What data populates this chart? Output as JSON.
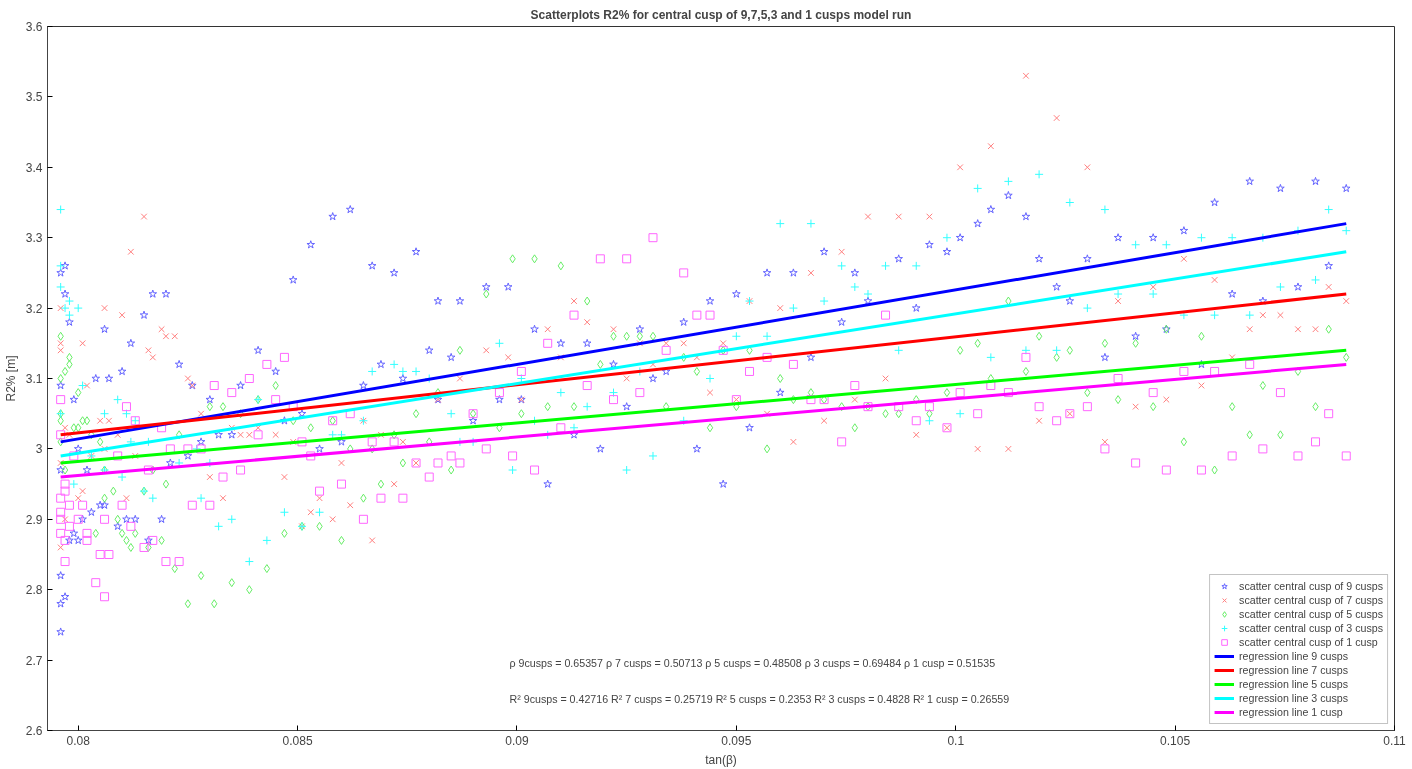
{
  "chart_data": {
    "type": "scatter",
    "title": "Scatterplots R2% for central cusp of 9,7,5,3 and 1 cusps model run",
    "xlabel": "tan(β)",
    "ylabel": "R2% [m]",
    "xlim": [
      0.0793,
      0.11
    ],
    "ylim": [
      2.6,
      3.6
    ],
    "xticks": [
      0.08,
      0.085,
      0.09,
      0.095,
      {
        "value": 0.1,
        "label": "0.1"
      },
      0.105,
      0.11
    ],
    "yticks": [
      2.6,
      2.7,
      2.8,
      2.9,
      {
        "value": 3.0,
        "label": "3"
      },
      3.1,
      3.2,
      3.3,
      3.4,
      3.5,
      3.6
    ],
    "legend": "bottom right",
    "annotations": [
      "ρ 9cusps = 0.65357   ρ 7 cusps = 0.50713   ρ 5 cusps = 0.48508   ρ 3 cusps = 0.69484   ρ 1 cusp = 0.51535",
      "R² 9cusps = 0.42716   R² 7 cusps = 0.25719   R² 5 cusps = 0.2353   R² 3 cusps = 0.4828   R² 1 cusp = 0.26559"
    ],
    "series": [
      {
        "name": "scatter central cusp of 9 cusps",
        "type": "scatter",
        "marker": "star",
        "color": "#6666ff",
        "x": [
          0.0796,
          0.0797,
          0.0797,
          0.0798,
          0.0796,
          0.0799,
          0.0806,
          0.0804,
          0.0807,
          0.081,
          0.0812,
          0.0815,
          0.0817,
          0.082,
          0.0823,
          0.0826,
          0.083,
          0.0837,
          0.0841,
          0.0845,
          0.0849,
          0.0853,
          0.0858,
          0.0862,
          0.0867,
          0.0872,
          0.0869,
          0.0865,
          0.0802,
          0.08,
          0.0796,
          0.0803,
          0.0805,
          0.0806,
          0.0801,
          0.0799,
          0.0798,
          0.08,
          0.0809,
          0.0811,
          0.0813,
          0.0816,
          0.0819,
          0.0828,
          0.0825,
          0.0821,
          0.0832,
          0.0835,
          0.0847,
          0.0851,
          0.0855,
          0.086,
          0.0796,
          0.0797,
          0.0796,
          0.0796,
          0.0877,
          0.0882,
          0.0887,
          0.0893,
          0.0898,
          0.088,
          0.0885,
          0.0874,
          0.0904,
          0.091,
          0.0916,
          0.0928,
          0.0938,
          0.0944,
          0.095,
          0.0922,
          0.0931,
          0.0934,
          0.0882,
          0.0896,
          0.0901,
          0.089,
          0.0925,
          0.0913,
          0.0919,
          0.0941,
          0.0907,
          0.0947,
          0.0953,
          0.0957,
          0.0963,
          0.097,
          0.0977,
          0.098,
          0.0987,
          0.0994,
          0.0998,
          0.1001,
          0.1005,
          0.1008,
          0.1012,
          0.1016,
          0.1019,
          0.1023,
          0.1026,
          0.103,
          0.1037,
          0.1034,
          0.0991,
          0.0974,
          0.0967,
          0.096,
          0.1045,
          0.1052,
          0.1059,
          0.1067,
          0.1074,
          0.1082,
          0.1089,
          0.1085,
          0.1078,
          0.107,
          0.1063,
          0.1048,
          0.1041,
          0.1056
        ],
        "values": [
          3.25,
          3.26,
          3.22,
          3.18,
          3.09,
          3.07,
          3.17,
          3.1,
          3.1,
          3.11,
          3.15,
          3.19,
          3.22,
          3.22,
          3.12,
          3.09,
          3.07,
          3.09,
          3.14,
          3.11,
          3.24,
          3.29,
          3.33,
          3.34,
          3.26,
          3.25,
          3.12,
          3.09,
          2.97,
          3.0,
          2.97,
          2.91,
          2.92,
          2.92,
          2.9,
          2.88,
          2.87,
          2.87,
          2.89,
          2.9,
          2.9,
          2.87,
          2.9,
          3.01,
          2.99,
          2.98,
          3.02,
          3.02,
          3.04,
          3.05,
          3.0,
          3.01,
          2.82,
          2.79,
          2.78,
          2.74,
          3.28,
          3.21,
          3.21,
          3.23,
          3.23,
          3.14,
          3.13,
          3.1,
          3.17,
          3.15,
          3.15,
          3.17,
          3.18,
          3.21,
          3.22,
          3.12,
          3.1,
          3.11,
          3.07,
          3.07,
          3.07,
          3.04,
          3.06,
          3.02,
          3.0,
          3.0,
          2.95,
          2.95,
          3.03,
          3.25,
          3.25,
          3.28,
          3.25,
          3.21,
          3.27,
          3.29,
          3.28,
          3.3,
          3.32,
          3.34,
          3.36,
          3.33,
          3.27,
          3.23,
          3.21,
          3.27,
          3.3,
          3.13,
          3.2,
          3.18,
          3.13,
          3.08,
          3.3,
          3.31,
          3.35,
          3.38,
          3.37,
          3.38,
          3.37,
          3.26,
          3.23,
          3.21,
          3.22,
          3.17,
          3.16,
          3.12
        ]
      },
      {
        "name": "scatter central cusp of 7 cusps",
        "type": "scatter",
        "marker": "x",
        "color": "#ff7f7f",
        "x": [
          0.0796,
          0.0796,
          0.0796,
          0.0801,
          0.0806,
          0.081,
          0.0812,
          0.0815,
          0.0816,
          0.0817,
          0.0819,
          0.082,
          0.0822,
          0.0802,
          0.0825,
          0.0826,
          0.0828,
          0.0805,
          0.0807,
          0.0809,
          0.0797,
          0.0798,
          0.0806,
          0.0813,
          0.0803,
          0.0796,
          0.083,
          0.0833,
          0.08,
          0.0801,
          0.0811,
          0.0797,
          0.0796,
          0.0835,
          0.0837,
          0.0839,
          0.0841,
          0.0845,
          0.0849,
          0.086,
          0.0847,
          0.0853,
          0.0855,
          0.0858,
          0.0862,
          0.0867,
          0.0851,
          0.0872,
          0.0865,
          0.0869,
          0.0913,
          0.0916,
          0.0907,
          0.0893,
          0.0898,
          0.0887,
          0.091,
          0.0922,
          0.0928,
          0.0934,
          0.0938,
          0.0953,
          0.0947,
          0.0941,
          0.0931,
          0.0925,
          0.0944,
          0.095,
          0.0901,
          0.0882,
          0.0874,
          0.0877,
          0.096,
          0.0967,
          0.0974,
          0.098,
          0.0987,
          0.0994,
          0.1001,
          0.1008,
          0.1016,
          0.1023,
          0.103,
          0.1037,
          0.0984,
          0.0957,
          0.097,
          0.0977,
          0.0963,
          0.0991,
          0.0998,
          0.1005,
          0.1012,
          0.1019,
          0.1026,
          0.1034,
          0.1045,
          0.1052,
          0.1059,
          0.1067,
          0.107,
          0.1074,
          0.1078,
          0.1082,
          0.1085,
          0.1089,
          0.1063,
          0.1056,
          0.1048,
          0.1041
        ],
        "values": [
          3.2,
          3.14,
          3.15,
          3.15,
          3.2,
          3.19,
          3.28,
          3.33,
          3.14,
          3.13,
          3.17,
          3.16,
          3.16,
          3.09,
          3.1,
          3.09,
          3.05,
          3.04,
          3.04,
          3.02,
          3.03,
          3.02,
          3.0,
          2.99,
          2.99,
          2.98,
          2.96,
          2.93,
          2.93,
          2.94,
          2.93,
          2.9,
          2.86,
          3.03,
          3.02,
          3.02,
          3.03,
          3.02,
          3.01,
          2.98,
          2.96,
          2.91,
          2.93,
          2.9,
          2.92,
          2.87,
          2.89,
          2.95,
          3.04,
          3.02,
          3.21,
          3.18,
          3.17,
          3.14,
          3.13,
          3.1,
          3.13,
          3.17,
          3.15,
          3.15,
          3.15,
          3.21,
          3.15,
          3.13,
          3.12,
          3.1,
          3.08,
          3.07,
          3.07,
          3.07,
          3.01,
          2.98,
          3.2,
          3.25,
          3.28,
          3.33,
          3.33,
          3.33,
          3.4,
          3.43,
          3.53,
          3.47,
          3.4,
          3.21,
          3.1,
          3.05,
          3.04,
          3.07,
          3.01,
          3.02,
          3.03,
          3.0,
          3.0,
          3.04,
          3.05,
          3.01,
          3.23,
          3.27,
          3.24,
          3.17,
          3.19,
          3.19,
          3.17,
          3.17,
          3.23,
          3.21,
          3.13,
          3.09,
          3.07,
          3.06
        ]
      },
      {
        "name": "scatter central cusp of 5 cusps",
        "type": "scatter",
        "marker": "diamond",
        "color": "#66ee66",
        "x": [
          0.0796,
          0.0798,
          0.0798,
          0.0797,
          0.0796,
          0.08,
          0.0796,
          0.0796,
          0.0796,
          0.0799,
          0.08,
          0.0801,
          0.0802,
          0.0803,
          0.0805,
          0.0806,
          0.0797,
          0.0808,
          0.0806,
          0.0804,
          0.0809,
          0.081,
          0.0811,
          0.0812,
          0.0813,
          0.0815,
          0.0816,
          0.0817,
          0.0819,
          0.082,
          0.0822,
          0.0823,
          0.0825,
          0.0828,
          0.083,
          0.0831,
          0.0833,
          0.0835,
          0.0837,
          0.0839,
          0.0841,
          0.0843,
          0.0845,
          0.0847,
          0.0849,
          0.0851,
          0.0853,
          0.0855,
          0.0858,
          0.086,
          0.0862,
          0.0865,
          0.0867,
          0.0869,
          0.0872,
          0.0899,
          0.0904,
          0.091,
          0.0893,
          0.0916,
          0.0887,
          0.0922,
          0.0925,
          0.0928,
          0.0931,
          0.0938,
          0.0941,
          0.0947,
          0.0953,
          0.0919,
          0.0882,
          0.0877,
          0.089,
          0.0901,
          0.0907,
          0.0913,
          0.0934,
          0.095,
          0.088,
          0.0896,
          0.0944,
          0.0874,
          0.0885,
          0.096,
          0.0957,
          0.0967,
          0.097,
          0.0963,
          0.0974,
          0.0977,
          0.098,
          0.0984,
          0.0987,
          0.0991,
          0.0994,
          0.0998,
          0.1001,
          0.1005,
          0.1008,
          0.1012,
          0.1016,
          0.1019,
          0.1023,
          0.1026,
          0.103,
          0.1034,
          0.1037,
          0.1041,
          0.1048,
          0.1056,
          0.1045,
          0.1052,
          0.1059,
          0.1063,
          0.1067,
          0.107,
          0.1074,
          0.1078,
          0.1082,
          0.1085,
          0.1089
        ],
        "values": [
          3.16,
          3.13,
          3.12,
          3.11,
          3.1,
          3.08,
          3.05,
          3.04,
          3.01,
          3.03,
          3.03,
          3.04,
          3.04,
          3.02,
          3.01,
          2.97,
          2.97,
          2.94,
          2.93,
          2.88,
          2.9,
          2.88,
          2.87,
          2.86,
          2.88,
          2.94,
          2.86,
          2.97,
          2.87,
          2.95,
          2.83,
          3.02,
          2.78,
          2.82,
          3.06,
          2.78,
          3.06,
          2.81,
          3.05,
          2.8,
          3.07,
          2.83,
          3.09,
          2.88,
          3.04,
          2.89,
          3.03,
          2.89,
          3.04,
          2.87,
          3.0,
          2.93,
          3.0,
          2.95,
          3.02,
          3.27,
          3.27,
          3.26,
          3.22,
          3.21,
          3.14,
          3.16,
          3.16,
          3.16,
          3.16,
          3.13,
          3.11,
          3.14,
          3.14,
          3.12,
          3.08,
          3.05,
          3.05,
          3.05,
          3.06,
          3.06,
          3.06,
          3.06,
          3.01,
          3.03,
          3.03,
          2.98,
          2.97,
          3.1,
          3.0,
          3.08,
          3.07,
          3.07,
          3.06,
          3.03,
          3.06,
          3.05,
          3.05,
          3.07,
          3.05,
          3.08,
          3.14,
          3.15,
          3.1,
          3.21,
          3.11,
          3.16,
          3.13,
          3.14,
          3.08,
          3.15,
          3.07,
          3.15,
          3.17,
          3.16,
          3.06,
          3.01,
          2.97,
          3.06,
          3.02,
          3.09,
          3.02,
          3.11,
          3.06,
          3.17,
          3.13
        ]
      },
      {
        "name": "scatter central cusp of 3 cusps",
        "type": "scatter",
        "marker": "cross",
        "color": "#33ffff",
        "x": [
          0.0796,
          0.0796,
          0.0796,
          0.0797,
          0.0798,
          0.0798,
          0.08,
          0.0796,
          0.0801,
          0.0809,
          0.0806,
          0.0811,
          0.0813,
          0.0812,
          0.0816,
          0.0803,
          0.0806,
          0.0799,
          0.081,
          0.0815,
          0.0817,
          0.0823,
          0.0827,
          0.083,
          0.0828,
          0.0832,
          0.0835,
          0.0839,
          0.0843,
          0.0847,
          0.0851,
          0.0855,
          0.0841,
          0.0858,
          0.086,
          0.0865,
          0.0867,
          0.0872,
          0.0874,
          0.0877,
          0.088,
          0.0885,
          0.0887,
          0.089,
          0.0896,
          0.0899,
          0.0901,
          0.0904,
          0.0907,
          0.091,
          0.0913,
          0.0916,
          0.0922,
          0.0925,
          0.0928,
          0.0931,
          0.0938,
          0.0944,
          0.095,
          0.0953,
          0.0957,
          0.096,
          0.0963,
          0.0967,
          0.097,
          0.0974,
          0.0977,
          0.098,
          0.0984,
          0.0987,
          0.0991,
          0.0994,
          0.0998,
          0.1001,
          0.1005,
          0.1008,
          0.1012,
          0.1016,
          0.1019,
          0.1023,
          0.1026,
          0.103,
          0.1034,
          0.1037,
          0.1041,
          0.1045,
          0.1048,
          0.1052,
          0.1056,
          0.1059,
          0.1063,
          0.1067,
          0.107,
          0.1074,
          0.1078,
          0.1082,
          0.1085,
          0.1089
        ],
        "values": [
          3.34,
          3.26,
          3.23,
          3.2,
          3.19,
          3.21,
          3.2,
          3.05,
          3.09,
          3.07,
          3.05,
          3.05,
          3.04,
          3.01,
          3.01,
          2.99,
          2.97,
          2.95,
          2.96,
          2.94,
          2.93,
          2.98,
          3.0,
          2.98,
          2.93,
          2.89,
          2.9,
          2.84,
          2.87,
          2.91,
          2.89,
          2.91,
          3.07,
          3.02,
          3.02,
          3.04,
          3.11,
          3.12,
          3.11,
          3.11,
          3.1,
          3.05,
          3.01,
          3.01,
          3.15,
          2.97,
          3.1,
          3.04,
          3.02,
          3.08,
          3.03,
          3.06,
          3.08,
          2.97,
          3.11,
          2.99,
          3.04,
          3.1,
          3.16,
          3.21,
          3.16,
          3.32,
          3.2,
          3.32,
          3.21,
          3.26,
          3.23,
          3.22,
          3.26,
          3.14,
          3.26,
          3.04,
          3.3,
          3.05,
          3.37,
          3.13,
          3.38,
          3.14,
          3.39,
          3.14,
          3.35,
          3.2,
          3.34,
          3.22,
          3.29,
          3.22,
          3.29,
          3.19,
          3.3,
          3.19,
          3.3,
          3.19,
          3.3,
          3.23,
          3.31,
          3.24,
          3.34,
          3.31
        ]
      },
      {
        "name": "scatter central cusp of 1 cusp",
        "type": "scatter",
        "marker": "square",
        "color": "#ff66ff",
        "x": [
          0.0796,
          0.0796,
          0.0811,
          0.0813,
          0.0819,
          0.0821,
          0.0825,
          0.0809,
          0.0799,
          0.0828,
          0.0831,
          0.0835,
          0.0839,
          0.0843,
          0.0845,
          0.0847,
          0.0841,
          0.0849,
          0.0851,
          0.0853,
          0.0858,
          0.0862,
          0.0867,
          0.0872,
          0.0837,
          0.0833,
          0.0816,
          0.0797,
          0.0797,
          0.0796,
          0.0796,
          0.0798,
          0.0801,
          0.081,
          0.08,
          0.0798,
          0.0796,
          0.0796,
          0.0797,
          0.0802,
          0.0802,
          0.0806,
          0.0812,
          0.0817,
          0.0826,
          0.083,
          0.0815,
          0.0805,
          0.0807,
          0.082,
          0.0823,
          0.0797,
          0.0804,
          0.0806,
          0.0855,
          0.086,
          0.0865,
          0.0869,
          0.0931,
          0.0919,
          0.0925,
          0.0938,
          0.0913,
          0.0941,
          0.0944,
          0.0907,
          0.0934,
          0.0947,
          0.0901,
          0.0916,
          0.0928,
          0.0953,
          0.0896,
          0.0922,
          0.089,
          0.095,
          0.091,
          0.0893,
          0.0899,
          0.0885,
          0.0887,
          0.0882,
          0.0877,
          0.088,
          0.0904,
          0.0874,
          0.0984,
          0.0957,
          0.0963,
          0.1016,
          0.1037,
          0.0977,
          0.1008,
          0.1001,
          0.1012,
          0.0967,
          0.097,
          0.098,
          0.0987,
          0.0994,
          0.1019,
          0.103,
          0.1026,
          0.0991,
          0.0998,
          0.1005,
          0.1023,
          0.0974,
          0.1034,
          0.1052,
          0.1059,
          0.1067,
          0.1045,
          0.1074,
          0.1085,
          0.1041,
          0.1048,
          0.1056,
          0.1063,
          0.107,
          0.1078,
          0.1082,
          0.1089
        ],
        "values": [
          3.07,
          3.02,
          3.06,
          3.04,
          3.03,
          3.0,
          3.0,
          2.99,
          2.99,
          3.0,
          3.09,
          3.08,
          3.1,
          3.12,
          3.07,
          3.13,
          3.02,
          3.06,
          3.01,
          2.99,
          3.04,
          3.05,
          3.01,
          3.01,
          2.97,
          2.96,
          2.97,
          2.95,
          2.94,
          2.93,
          2.91,
          2.92,
          2.92,
          2.92,
          2.9,
          2.89,
          2.9,
          2.88,
          2.87,
          2.87,
          2.88,
          2.9,
          2.89,
          2.87,
          2.92,
          2.92,
          2.86,
          2.85,
          2.85,
          2.84,
          2.84,
          2.84,
          2.81,
          2.79,
          2.94,
          2.95,
          2.9,
          2.93,
          3.3,
          3.27,
          3.27,
          3.25,
          3.19,
          3.19,
          3.19,
          3.15,
          3.14,
          3.14,
          3.11,
          3.09,
          3.08,
          3.11,
          3.08,
          3.07,
          3.05,
          3.07,
          3.03,
          3.0,
          2.99,
          2.99,
          2.98,
          2.98,
          2.98,
          2.96,
          2.97,
          2.93,
          3.19,
          3.13,
          3.12,
          3.13,
          3.1,
          3.09,
          3.09,
          3.08,
          3.08,
          3.07,
          3.07,
          3.06,
          3.06,
          3.06,
          3.06,
          3.06,
          3.05,
          3.04,
          3.03,
          3.05,
          3.04,
          3.01,
          3.0,
          3.11,
          3.11,
          3.12,
          3.08,
          3.08,
          3.05,
          2.98,
          2.97,
          2.97,
          2.99,
          3.0,
          2.99,
          3.01,
          2.99
        ]
      },
      {
        "name": "regression line 9 cusps",
        "type": "line",
        "color": "#0000ff",
        "x": [
          0.0796,
          0.1089
        ],
        "values": [
          3.01,
          3.32
        ]
      },
      {
        "name": "regression line 7 cusps",
        "type": "line",
        "color": "#ff0000",
        "x": [
          0.0796,
          0.1089
        ],
        "values": [
          3.02,
          3.22
        ]
      },
      {
        "name": "regression line 5 cusps",
        "type": "line",
        "color": "#00ff00",
        "x": [
          0.0796,
          0.1089
        ],
        "values": [
          2.98,
          3.14
        ]
      },
      {
        "name": "regression line 3 cusps",
        "type": "line",
        "color": "#00ffff",
        "x": [
          0.0796,
          0.1089
        ],
        "values": [
          2.99,
          3.28
        ]
      },
      {
        "name": "regression line 1 cusp",
        "type": "line",
        "color": "#ff00ff",
        "x": [
          0.0796,
          0.1089
        ],
        "values": [
          2.96,
          3.12
        ]
      }
    ]
  }
}
